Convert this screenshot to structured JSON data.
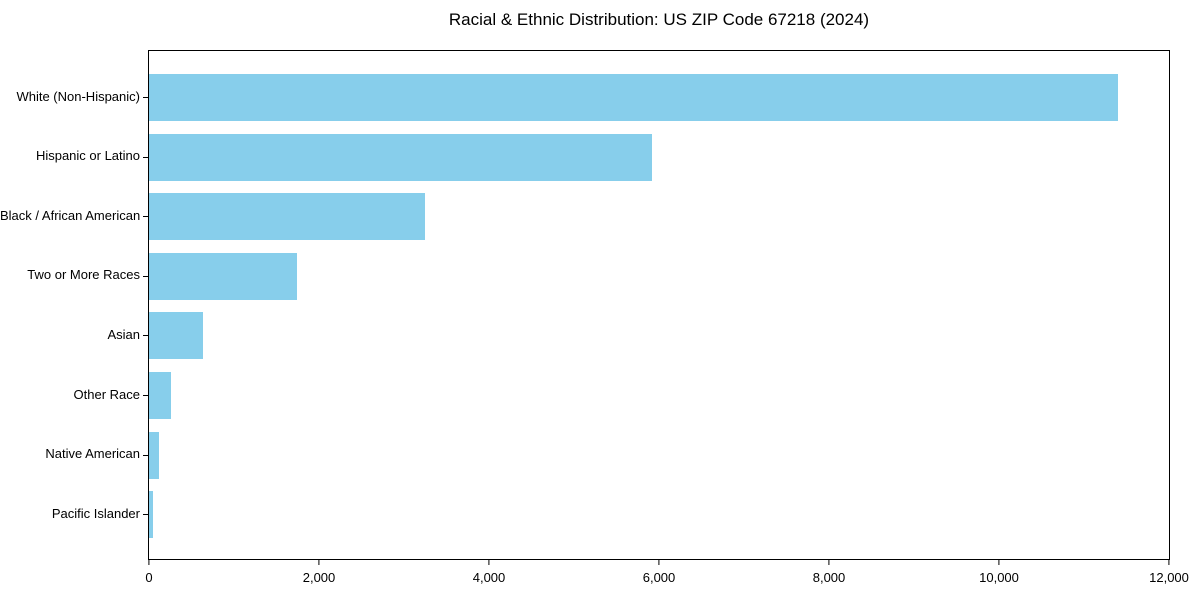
{
  "title": "Racial & Ethnic Distribution: US ZIP Code 67218 (2024)",
  "chart_data": {
    "type": "bar",
    "orientation": "horizontal",
    "title": "Racial & Ethnic Distribution: US ZIP Code 67218 (2024)",
    "categories": [
      "White (Non-Hispanic)",
      "Hispanic or Latino",
      "Black / African American",
      "Two or More Races",
      "Asian",
      "Other Race",
      "Native American",
      "Pacific Islander"
    ],
    "values": [
      11400,
      5920,
      3250,
      1740,
      630,
      260,
      120,
      45
    ],
    "xlabel": "",
    "ylabel": "",
    "xlim": [
      0,
      12000
    ],
    "xticks": [
      0,
      2000,
      4000,
      6000,
      8000,
      10000,
      12000
    ],
    "xtick_labels": [
      "0",
      "2,000",
      "4,000",
      "6,000",
      "8,000",
      "10,000",
      "12,000"
    ],
    "bar_color": "#87CEEB",
    "spine_color": "#000000",
    "background": "#FFFFFF",
    "grid": false,
    "legend": null
  }
}
